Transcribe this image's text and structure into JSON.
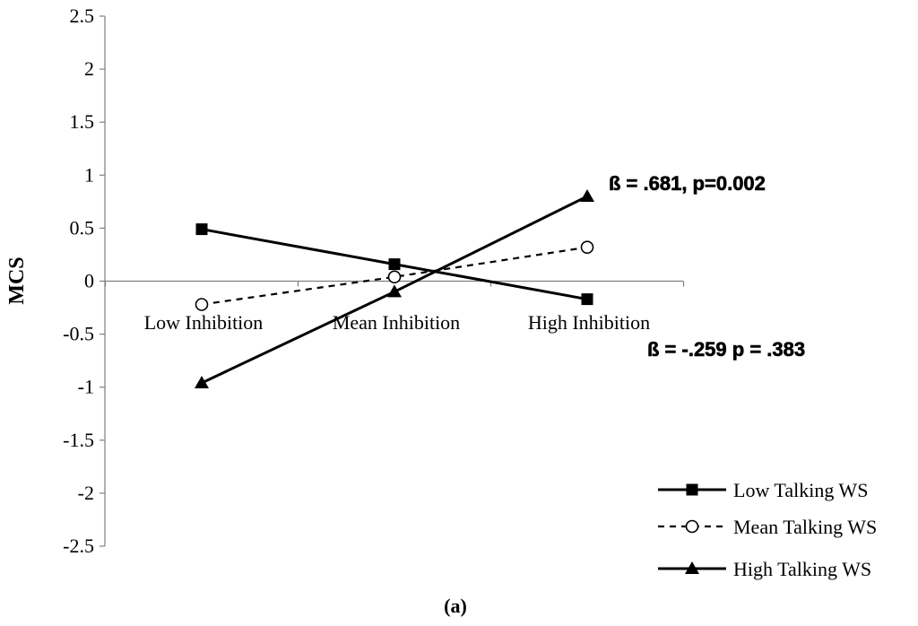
{
  "chart_data": {
    "type": "line",
    "ylabel": "MCS",
    "ylim": [
      -2.5,
      2.5
    ],
    "yticks": [
      "2.5",
      "2",
      "1.5",
      "1",
      "0.5",
      "0",
      "-0.5",
      "-1",
      "-1.5",
      "-2",
      "-2.5"
    ],
    "categories": [
      "Low Inhibition",
      "Mean Inhibition",
      "High Inhibition"
    ],
    "series": [
      {
        "name": "Low Talking WS",
        "values": [
          0.49,
          0.16,
          -0.17
        ],
        "line": "solid",
        "marker": "square"
      },
      {
        "name": "Mean Talking WS",
        "values": [
          -0.22,
          0.04,
          0.32
        ],
        "line": "dashed",
        "marker": "circle-open"
      },
      {
        "name": "High Talking WS",
        "values": [
          -0.96,
          -0.1,
          0.8
        ],
        "line": "solid",
        "marker": "triangle"
      }
    ],
    "annotations": [
      {
        "text": "ß = .681, p=0.002"
      },
      {
        "text": "ß = -.259 p = .383"
      }
    ],
    "legend_position": "bottom-right",
    "caption": "(a)",
    "grid": false
  }
}
